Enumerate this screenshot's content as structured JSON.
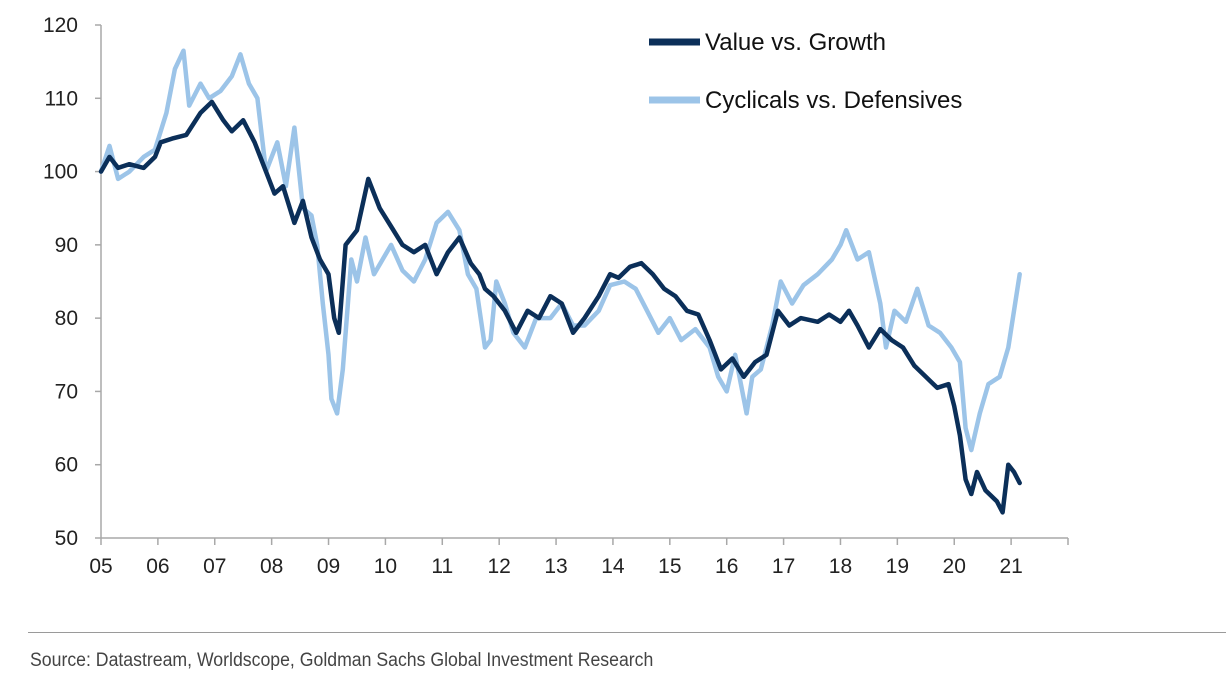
{
  "source_note": "Source: Datastream, Worldscope, Goldman Sachs Global Investment Research",
  "chart_data": {
    "type": "line",
    "title": "",
    "xlabel": "",
    "ylabel": "",
    "xlim": [
      2005.0,
      2022.0
    ],
    "ylim": [
      50,
      120
    ],
    "y_ticks": [
      50,
      60,
      70,
      80,
      90,
      100,
      110,
      120
    ],
    "x_ticks": [
      {
        "label": "05",
        "value": 2005
      },
      {
        "label": "06",
        "value": 2006
      },
      {
        "label": "07",
        "value": 2007
      },
      {
        "label": "08",
        "value": 2008
      },
      {
        "label": "09",
        "value": 2009
      },
      {
        "label": "10",
        "value": 2010
      },
      {
        "label": "11",
        "value": 2011
      },
      {
        "label": "12",
        "value": 2012
      },
      {
        "label": "13",
        "value": 2013
      },
      {
        "label": "14",
        "value": 2014
      },
      {
        "label": "15",
        "value": 2015
      },
      {
        "label": "16",
        "value": 2016
      },
      {
        "label": "17",
        "value": 2017
      },
      {
        "label": "18",
        "value": 2018
      },
      {
        "label": "19",
        "value": 2019
      },
      {
        "label": "20",
        "value": 2020
      },
      {
        "label": "21",
        "value": 2021
      }
    ],
    "grid": false,
    "legend_position": "top-right",
    "series": [
      {
        "name": "Value vs. Growth",
        "color": "#0b2f59",
        "points": [
          [
            2005.0,
            100
          ],
          [
            2005.15,
            102
          ],
          [
            2005.3,
            100.5
          ],
          [
            2005.5,
            101
          ],
          [
            2005.75,
            100.5
          ],
          [
            2005.95,
            102
          ],
          [
            2006.05,
            104
          ],
          [
            2006.25,
            104.5
          ],
          [
            2006.5,
            105
          ],
          [
            2006.75,
            108
          ],
          [
            2006.95,
            109.5
          ],
          [
            2007.15,
            107
          ],
          [
            2007.3,
            105.5
          ],
          [
            2007.5,
            107
          ],
          [
            2007.7,
            104
          ],
          [
            2007.9,
            100
          ],
          [
            2008.05,
            97
          ],
          [
            2008.2,
            98
          ],
          [
            2008.4,
            93
          ],
          [
            2008.55,
            96
          ],
          [
            2008.7,
            91
          ],
          [
            2008.85,
            88
          ],
          [
            2009.0,
            86
          ],
          [
            2009.1,
            80
          ],
          [
            2009.18,
            78
          ],
          [
            2009.3,
            90
          ],
          [
            2009.5,
            92
          ],
          [
            2009.7,
            99
          ],
          [
            2009.9,
            95
          ],
          [
            2010.1,
            92.5
          ],
          [
            2010.3,
            90
          ],
          [
            2010.5,
            89
          ],
          [
            2010.7,
            90
          ],
          [
            2010.9,
            86
          ],
          [
            2011.1,
            89
          ],
          [
            2011.3,
            91
          ],
          [
            2011.5,
            87.5
          ],
          [
            2011.65,
            86
          ],
          [
            2011.75,
            84
          ],
          [
            2011.9,
            83
          ],
          [
            2012.1,
            81
          ],
          [
            2012.3,
            78
          ],
          [
            2012.5,
            81
          ],
          [
            2012.7,
            80
          ],
          [
            2012.9,
            83
          ],
          [
            2013.1,
            82
          ],
          [
            2013.3,
            78
          ],
          [
            2013.5,
            80
          ],
          [
            2013.75,
            83
          ],
          [
            2013.95,
            86
          ],
          [
            2014.1,
            85.5
          ],
          [
            2014.3,
            87
          ],
          [
            2014.5,
            87.5
          ],
          [
            2014.7,
            86
          ],
          [
            2014.9,
            84
          ],
          [
            2015.1,
            83
          ],
          [
            2015.3,
            81
          ],
          [
            2015.5,
            80.5
          ],
          [
            2015.7,
            77
          ],
          [
            2015.9,
            73
          ],
          [
            2016.1,
            74.5
          ],
          [
            2016.3,
            72
          ],
          [
            2016.5,
            74
          ],
          [
            2016.7,
            75
          ],
          [
            2016.9,
            81
          ],
          [
            2017.1,
            79
          ],
          [
            2017.3,
            80
          ],
          [
            2017.6,
            79.5
          ],
          [
            2017.8,
            80.5
          ],
          [
            2018.0,
            79.5
          ],
          [
            2018.15,
            81
          ],
          [
            2018.3,
            79
          ],
          [
            2018.5,
            76
          ],
          [
            2018.7,
            78.5
          ],
          [
            2018.9,
            77
          ],
          [
            2019.1,
            76
          ],
          [
            2019.3,
            73.5
          ],
          [
            2019.5,
            72
          ],
          [
            2019.7,
            70.5
          ],
          [
            2019.9,
            71
          ],
          [
            2020.0,
            68
          ],
          [
            2020.1,
            64
          ],
          [
            2020.2,
            58
          ],
          [
            2020.3,
            56
          ],
          [
            2020.4,
            59
          ],
          [
            2020.55,
            56.5
          ],
          [
            2020.75,
            55
          ],
          [
            2020.85,
            53.5
          ],
          [
            2020.95,
            60
          ],
          [
            2021.05,
            59
          ],
          [
            2021.15,
            57.5
          ]
        ]
      },
      {
        "name": "Cyclicals vs. Defensives",
        "color": "#9cc4e8",
        "points": [
          [
            2005.0,
            100
          ],
          [
            2005.15,
            103.5
          ],
          [
            2005.3,
            99
          ],
          [
            2005.5,
            100
          ],
          [
            2005.75,
            102
          ],
          [
            2005.95,
            103
          ],
          [
            2006.15,
            108
          ],
          [
            2006.3,
            114
          ],
          [
            2006.45,
            116.5
          ],
          [
            2006.55,
            109
          ],
          [
            2006.75,
            112
          ],
          [
            2006.9,
            110
          ],
          [
            2007.1,
            111
          ],
          [
            2007.3,
            113
          ],
          [
            2007.45,
            116
          ],
          [
            2007.6,
            112
          ],
          [
            2007.75,
            110
          ],
          [
            2007.9,
            100
          ],
          [
            2008.1,
            104
          ],
          [
            2008.25,
            98
          ],
          [
            2008.4,
            106
          ],
          [
            2008.55,
            95
          ],
          [
            2008.7,
            94
          ],
          [
            2008.8,
            90
          ],
          [
            2008.9,
            82
          ],
          [
            2009.0,
            75
          ],
          [
            2009.05,
            69
          ],
          [
            2009.15,
            67
          ],
          [
            2009.25,
            73
          ],
          [
            2009.4,
            88
          ],
          [
            2009.5,
            85
          ],
          [
            2009.65,
            91
          ],
          [
            2009.8,
            86
          ],
          [
            2009.95,
            88
          ],
          [
            2010.1,
            90
          ],
          [
            2010.3,
            86.5
          ],
          [
            2010.5,
            85
          ],
          [
            2010.7,
            88
          ],
          [
            2010.9,
            93
          ],
          [
            2011.1,
            94.5
          ],
          [
            2011.3,
            92
          ],
          [
            2011.45,
            86
          ],
          [
            2011.6,
            84
          ],
          [
            2011.75,
            76
          ],
          [
            2011.85,
            77
          ],
          [
            2011.95,
            85
          ],
          [
            2012.1,
            82
          ],
          [
            2012.25,
            78
          ],
          [
            2012.45,
            76
          ],
          [
            2012.65,
            80
          ],
          [
            2012.9,
            80
          ],
          [
            2013.1,
            82
          ],
          [
            2013.3,
            79
          ],
          [
            2013.5,
            79
          ],
          [
            2013.75,
            81
          ],
          [
            2013.95,
            84.5
          ],
          [
            2014.2,
            85
          ],
          [
            2014.4,
            84
          ],
          [
            2014.6,
            81
          ],
          [
            2014.8,
            78
          ],
          [
            2015.0,
            80
          ],
          [
            2015.2,
            77
          ],
          [
            2015.45,
            78.5
          ],
          [
            2015.7,
            76
          ],
          [
            2015.85,
            72
          ],
          [
            2016.0,
            70
          ],
          [
            2016.15,
            75
          ],
          [
            2016.35,
            67
          ],
          [
            2016.45,
            72
          ],
          [
            2016.6,
            73
          ],
          [
            2016.8,
            79
          ],
          [
            2016.95,
            85
          ],
          [
            2017.15,
            82
          ],
          [
            2017.35,
            84.5
          ],
          [
            2017.6,
            86
          ],
          [
            2017.85,
            88
          ],
          [
            2018.0,
            90
          ],
          [
            2018.1,
            92
          ],
          [
            2018.3,
            88
          ],
          [
            2018.5,
            89
          ],
          [
            2018.7,
            82
          ],
          [
            2018.8,
            76
          ],
          [
            2018.95,
            81
          ],
          [
            2019.15,
            79.5
          ],
          [
            2019.35,
            84
          ],
          [
            2019.55,
            79
          ],
          [
            2019.75,
            78
          ],
          [
            2019.95,
            76
          ],
          [
            2020.1,
            74
          ],
          [
            2020.2,
            65
          ],
          [
            2020.3,
            62
          ],
          [
            2020.45,
            67
          ],
          [
            2020.6,
            71
          ],
          [
            2020.8,
            72
          ],
          [
            2020.95,
            76
          ],
          [
            2021.05,
            81
          ],
          [
            2021.15,
            86
          ]
        ]
      }
    ]
  }
}
